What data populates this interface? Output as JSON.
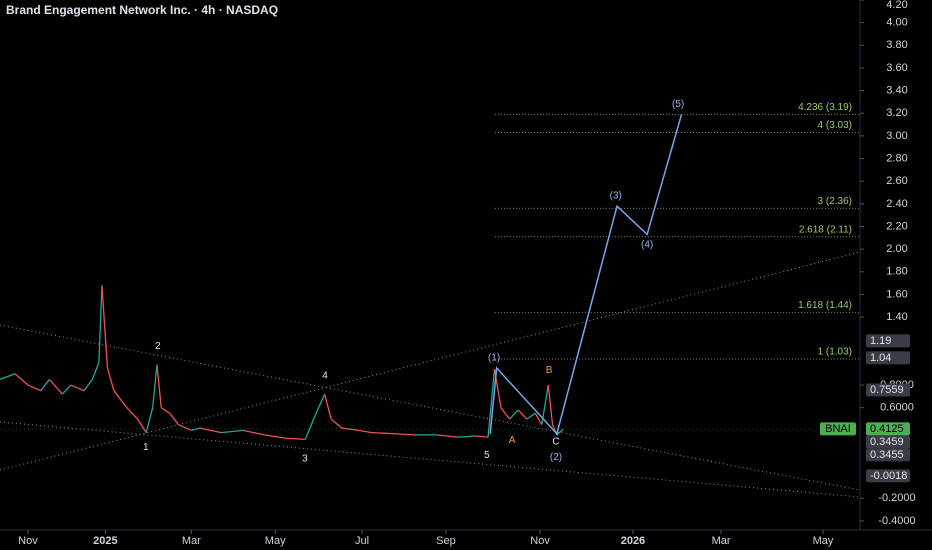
{
  "chart_data": {
    "type": "line",
    "title": "Brand Engagement Network Inc. · 4h · NASDAQ",
    "ticker": "BNAI",
    "xlim": [
      -0.65,
      19.35
    ],
    "ylim": [
      -0.48,
      4.2
    ],
    "xticks": [
      {
        "value": 0,
        "label": "Nov"
      },
      {
        "value": 1.8,
        "label": "2025"
      },
      {
        "value": 3.8,
        "label": "Mar"
      },
      {
        "value": 5.75,
        "label": "May"
      },
      {
        "value": 7.77,
        "label": "Jul"
      },
      {
        "value": 9.72,
        "label": "Sep"
      },
      {
        "value": 11.91,
        "label": "Nov"
      },
      {
        "value": 14.07,
        "label": "2026"
      },
      {
        "value": 16.12,
        "label": "Mar"
      },
      {
        "value": 18.49,
        "label": "May"
      }
    ],
    "yticks": [
      {
        "value": 4.2,
        "label": "4.20"
      },
      {
        "value": 4,
        "label": "4.00"
      },
      {
        "value": 3.8,
        "label": "3.80"
      },
      {
        "value": 3.6,
        "label": "3.60"
      },
      {
        "value": 3.4,
        "label": "3.40"
      },
      {
        "value": 3.2,
        "label": "3.20"
      },
      {
        "value": 3,
        "label": "3.00"
      },
      {
        "value": 2.8,
        "label": "2.80"
      },
      {
        "value": 2.6,
        "label": "2.60"
      },
      {
        "value": 2.4,
        "label": "2.40"
      },
      {
        "value": 2.2,
        "label": "2.20"
      },
      {
        "value": 2,
        "label": "2.00"
      },
      {
        "value": 1.8,
        "label": "1.80"
      },
      {
        "value": 1.6,
        "label": "1.60"
      },
      {
        "value": 1.4,
        "label": "1.40"
      },
      {
        "value": 0.8,
        "label": "0.8000"
      },
      {
        "value": 0.6,
        "label": "0.6000"
      },
      {
        "value": -0.2,
        "label": "-0.2000"
      },
      {
        "value": -0.4,
        "label": "-0.4000"
      }
    ],
    "grid": false,
    "x": [
      -0.65,
      -0.3,
      0,
      0.3,
      0.5,
      0.8,
      1.0,
      1.3,
      1.5,
      1.65,
      1.72,
      1.85,
      2.0,
      2.3,
      2.55,
      2.75,
      2.9,
      3.0,
      3.1,
      3.3,
      3.5,
      3.8,
      4.0,
      4.5,
      5.0,
      5.5,
      6.0,
      6.45,
      6.7,
      6.9,
      7.05,
      7.3,
      7.7,
      8.0,
      8.5,
      9.0,
      9.5,
      10.0,
      10.4,
      10.7,
      10.85,
      11.0,
      11.2,
      11.4,
      11.6,
      11.8,
      11.95,
      12.1,
      12.2,
      12.3,
      12.45
    ],
    "series": [
      {
        "name": "BNAI",
        "color": "#26a69a",
        "down_color": "#ef5350",
        "values": [
          0.85,
          0.9,
          0.8,
          0.75,
          0.85,
          0.72,
          0.8,
          0.75,
          0.85,
          1.0,
          1.68,
          0.95,
          0.75,
          0.6,
          0.5,
          0.38,
          0.6,
          0.98,
          0.6,
          0.55,
          0.45,
          0.4,
          0.42,
          0.38,
          0.4,
          0.36,
          0.33,
          0.32,
          0.55,
          0.72,
          0.5,
          0.42,
          0.4,
          0.38,
          0.37,
          0.36,
          0.36,
          0.34,
          0.35,
          0.34,
          0.94,
          0.6,
          0.5,
          0.58,
          0.5,
          0.55,
          0.45,
          0.8,
          0.45,
          0.36,
          0.41
        ]
      }
    ],
    "wave": {
      "color": "#7aa7e8",
      "x": [
        10.75,
        10.9,
        12.3,
        13.7,
        14.4,
        15.2
      ],
      "values": [
        0.37,
        0.95,
        0.37,
        2.38,
        2.13,
        3.19
      ]
    },
    "wave_labels": [
      {
        "label": "1",
        "x": 2.74,
        "value": 0.25,
        "color": "#e0e3eb"
      },
      {
        "label": "2",
        "x": 3.02,
        "value": 1.14,
        "color": "#e0e3eb"
      },
      {
        "label": "3",
        "x": 6.44,
        "value": 0.15,
        "color": "#e0e3eb"
      },
      {
        "label": "4",
        "x": 6.91,
        "value": 0.88,
        "color": "#e0e3eb"
      },
      {
        "label": "5",
        "x": 10.67,
        "value": 0.18,
        "color": "#e0e3eb"
      },
      {
        "label": "A",
        "x": 11.26,
        "value": 0.31,
        "color": "#f0a030"
      },
      {
        "label": "B",
        "x": 12.12,
        "value": 0.93,
        "color": "#f0a030"
      },
      {
        "label": "C",
        "x": 12.28,
        "value": 0.3,
        "color": "#e0e3eb"
      },
      {
        "label": "(1)",
        "x": 10.84,
        "value": 1.04,
        "color": "#8fb5f0"
      },
      {
        "label": "(2)",
        "x": 12.28,
        "value": 0.16,
        "color": "#8fb5f0"
      },
      {
        "label": "(3)",
        "x": 13.67,
        "value": 2.47,
        "color": "#8fb5f0"
      },
      {
        "label": "(4)",
        "x": 14.4,
        "value": 2.04,
        "color": "#8fb5f0"
      },
      {
        "label": "(5)",
        "x": 15.12,
        "value": 3.28,
        "color": "#8fb5f0"
      }
    ],
    "fib_start": 10.86,
    "fib_color": "#9ccc65",
    "fib_levels": [
      {
        "label": "4.236 (3.19)",
        "value": 3.19
      },
      {
        "label": "4 (3.03)",
        "value": 3.03
      },
      {
        "label": "3 (2.36)",
        "value": 2.36
      },
      {
        "label": "2.618 (2.11)",
        "value": 2.11
      },
      {
        "label": "1.618 (1.44)",
        "value": 1.44
      },
      {
        "label": "1 (1.03)",
        "value": 1.03
      }
    ],
    "price_marks": [
      1.19,
      1.04,
      0.7559,
      0.4125,
      0.3459,
      0.3455,
      -0.0018
    ],
    "last_price_index": 3
  }
}
